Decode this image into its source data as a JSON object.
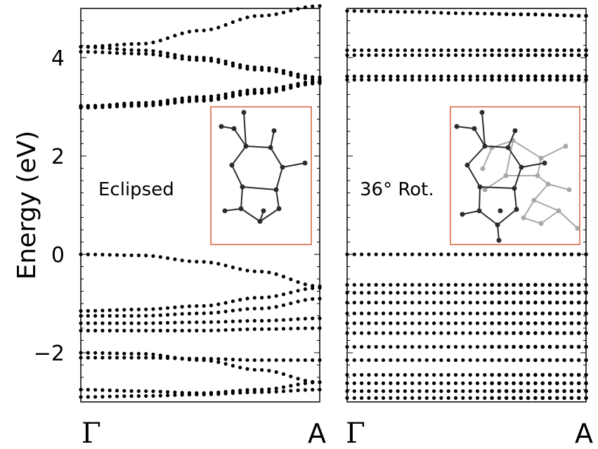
{
  "chart_data": [
    {
      "type": "scatter",
      "panel": "left",
      "label": "Eclipsed",
      "ylabel": "Energy (eV)",
      "ylim": [
        -3.0,
        5.0
      ],
      "yticks": [
        -2,
        0,
        2,
        4
      ],
      "ytick_labels": [
        "−2",
        "0",
        "2",
        "4"
      ],
      "xlim": [
        0,
        1
      ],
      "xtick_labels": [
        "Γ",
        "A"
      ],
      "bands": [
        [
          4.22,
          4.28,
          4.55,
          4.85,
          5.05
        ],
        [
          4.22,
          4.15,
          4.0,
          3.8,
          3.6
        ],
        [
          4.12,
          4.08,
          3.95,
          3.75,
          3.55
        ],
        [
          3.02,
          3.05,
          3.15,
          3.3,
          3.5
        ],
        [
          2.98,
          3.02,
          3.12,
          3.28,
          3.48
        ],
        [
          3.0,
          3.08,
          3.2,
          3.35,
          3.52
        ],
        [
          0.0,
          -0.02,
          -0.15,
          -0.35,
          -0.65
        ],
        [
          -1.15,
          -1.12,
          -1.05,
          -0.88,
          -0.68
        ],
        [
          -1.25,
          -1.25,
          -1.2,
          -1.1,
          -0.9
        ],
        [
          -1.4,
          -1.4,
          -1.38,
          -1.35,
          -1.3
        ],
        [
          -1.55,
          -1.55,
          -1.55,
          -1.52,
          -1.5
        ],
        [
          -2.0,
          -2.02,
          -2.15,
          -2.35,
          -2.6
        ],
        [
          -2.1,
          -2.1,
          -2.12,
          -2.15,
          -2.15
        ],
        [
          -2.75,
          -2.78,
          -2.82,
          -2.75,
          -2.6
        ],
        [
          -2.9,
          -2.88,
          -2.85,
          -2.8,
          -2.75
        ]
      ]
    },
    {
      "type": "scatter",
      "panel": "right",
      "label": "36° Rot.",
      "ylim": [
        -3.0,
        5.0
      ],
      "xlim": [
        0,
        1
      ],
      "xtick_labels": [
        "Γ",
        "A"
      ],
      "bands": [
        [
          4.95,
          4.93,
          4.9,
          4.88,
          4.85
        ],
        [
          4.15,
          4.15,
          4.15,
          4.15,
          4.15
        ],
        [
          4.05,
          4.05,
          4.05,
          4.05,
          4.05
        ],
        [
          3.62,
          3.62,
          3.62,
          3.62,
          3.62
        ],
        [
          3.55,
          3.55,
          3.55,
          3.55,
          3.55
        ],
        [
          0.0,
          0.0,
          0.0,
          0.0,
          0.0
        ],
        [
          -0.62,
          -0.62,
          -0.62,
          -0.62,
          -0.62
        ],
        [
          -0.78,
          -0.78,
          -0.78,
          -0.78,
          -0.78
        ],
        [
          -0.98,
          -0.98,
          -0.98,
          -0.98,
          -0.98
        ],
        [
          -1.2,
          -1.2,
          -1.2,
          -1.2,
          -1.2
        ],
        [
          -1.4,
          -1.4,
          -1.4,
          -1.4,
          -1.4
        ],
        [
          -1.6,
          -1.6,
          -1.6,
          -1.6,
          -1.6
        ],
        [
          -1.88,
          -1.88,
          -1.88,
          -1.88,
          -1.88
        ],
        [
          -2.15,
          -2.15,
          -2.15,
          -2.15,
          -2.15
        ],
        [
          -2.45,
          -2.45,
          -2.45,
          -2.45,
          -2.45
        ],
        [
          -2.62,
          -2.62,
          -2.62,
          -2.62,
          -2.62
        ],
        [
          -2.78,
          -2.78,
          -2.78,
          -2.78,
          -2.78
        ],
        [
          -2.92,
          -2.92,
          -2.92,
          -2.92,
          -2.92
        ]
      ]
    }
  ],
  "inset_colors": {
    "frame": "#d9603b",
    "molecule_dark": "#2b2b2b",
    "molecule_light": "#a8a8a8"
  }
}
